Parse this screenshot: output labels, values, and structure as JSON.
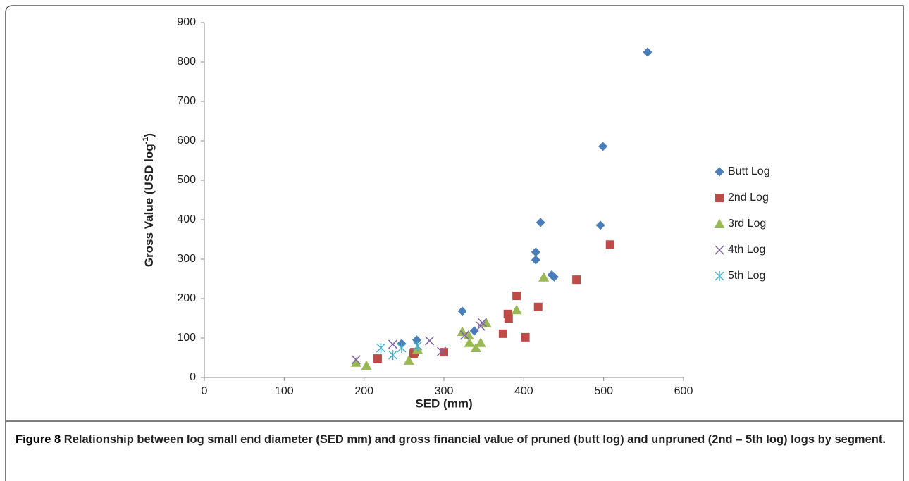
{
  "chart_data": {
    "type": "scatter",
    "xlabel": "SED (mm)",
    "ylabel": {
      "text": "Gross Value (USD log",
      "sup": "-1",
      "end": ")"
    },
    "xlim": [
      0,
      600
    ],
    "xticks": [
      0,
      100,
      200,
      300,
      400,
      500,
      600
    ],
    "ylim": [
      0,
      900
    ],
    "yticks": [
      0,
      100,
      200,
      300,
      400,
      500,
      600,
      700,
      800,
      900
    ],
    "grid": false,
    "legend": "right",
    "series": [
      {
        "name": "Butt Log",
        "color": "#4a7ebb",
        "marker": "diamond",
        "x": [
          555,
          499,
          496,
          421,
          415,
          415,
          435,
          438,
          323,
          338,
          247,
          266
        ],
        "y": [
          825,
          586,
          386,
          393,
          318,
          298,
          260,
          255,
          168,
          118,
          86,
          95
        ]
      },
      {
        "name": "2nd Log",
        "color": "#be4b48",
        "marker": "square",
        "x": [
          508,
          466,
          391,
          418,
          380,
          381,
          374,
          402,
          300,
          263,
          262,
          217
        ],
        "y": [
          337,
          248,
          207,
          179,
          161,
          150,
          111,
          102,
          64,
          64,
          60,
          48
        ]
      },
      {
        "name": "3rd Log",
        "color": "#98b954",
        "marker": "triangle",
        "x": [
          425,
          391,
          353,
          323,
          331,
          332,
          346,
          340,
          267,
          256,
          190,
          203
        ],
        "y": [
          254,
          171,
          138,
          116,
          107,
          88,
          88,
          75,
          71,
          43,
          38,
          30
        ]
      },
      {
        "name": "4th Log",
        "color": "#8064a2",
        "marker": "x",
        "x": [
          348,
          346,
          326,
          282,
          236,
          190,
          297
        ],
        "y": [
          139,
          130,
          107,
          93,
          84,
          45,
          66
        ]
      },
      {
        "name": "5th Log",
        "color": "#4bacc6",
        "marker": "star",
        "x": [
          221,
          236,
          247,
          267
        ],
        "y": [
          75,
          57,
          75,
          80
        ]
      }
    ]
  },
  "caption": {
    "label": "Figure 8",
    "text": "Relationship between log small end diameter (SED mm) and gross financial value of pruned (butt log) and unpruned (2nd – 5th log) logs by segment."
  }
}
